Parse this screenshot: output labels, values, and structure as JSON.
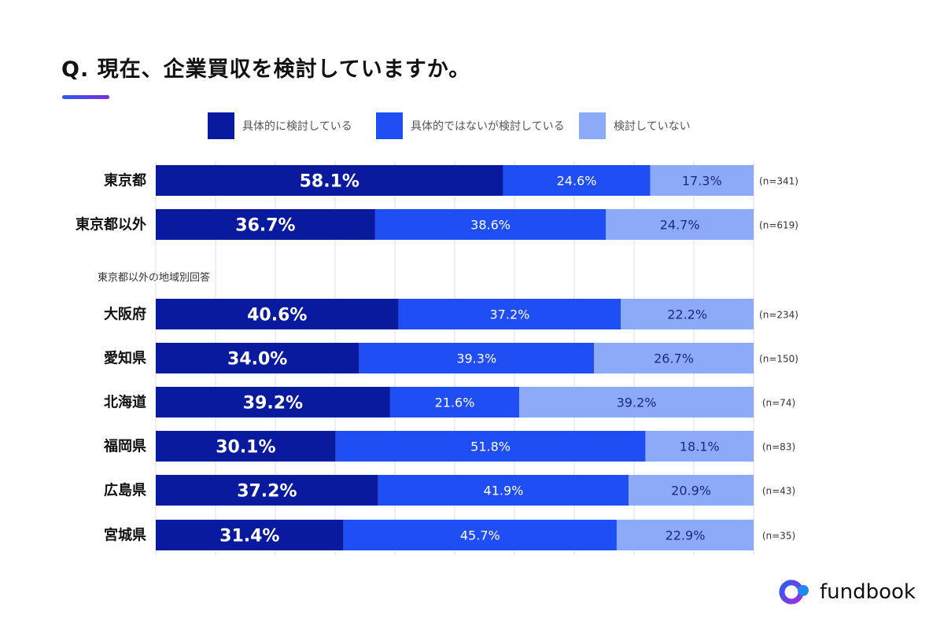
{
  "chart_data": {
    "type": "bar",
    "orientation": "horizontal",
    "stacked": true,
    "title": "Q. 現在、企業買収を検討していますか。",
    "subtitle": "東京都以外の地域別回答",
    "xlim": [
      0,
      100
    ],
    "grid": true,
    "legend_position": "top",
    "series": [
      {
        "name": "具体的に検討している",
        "color": "#0a1a9e"
      },
      {
        "name": "具体的ではないが検討している",
        "color": "#1f4ef5"
      },
      {
        "name": "検討していない",
        "color": "#8daaf8"
      }
    ],
    "groups": [
      {
        "rows": [
          {
            "category": "東京都",
            "values": [
              58.1,
              24.6,
              17.3
            ],
            "n": "(n=341)"
          },
          {
            "category": "東京都以外",
            "values": [
              36.7,
              38.6,
              24.7
            ],
            "n": "(n=619)"
          }
        ]
      },
      {
        "label": "東京都以外の地域別回答",
        "rows": [
          {
            "category": "大阪府",
            "values": [
              40.6,
              37.2,
              22.2
            ],
            "n": "(n=234)"
          },
          {
            "category": "愛知県",
            "values": [
              34.0,
              39.3,
              26.7
            ],
            "n": "(n=150)"
          },
          {
            "category": "北海道",
            "values": [
              39.2,
              21.6,
              39.2
            ],
            "n": "(n=74)"
          },
          {
            "category": "福岡県",
            "values": [
              30.1,
              51.8,
              18.1
            ],
            "n": "(n=83)"
          },
          {
            "category": "広島県",
            "values": [
              37.2,
              41.9,
              20.9
            ],
            "n": "(n=43)"
          },
          {
            "category": "宮城県",
            "values": [
              31.4,
              45.7,
              22.9
            ],
            "n": "(n=35)"
          }
        ]
      }
    ]
  },
  "logo": {
    "text": "fundbook"
  }
}
